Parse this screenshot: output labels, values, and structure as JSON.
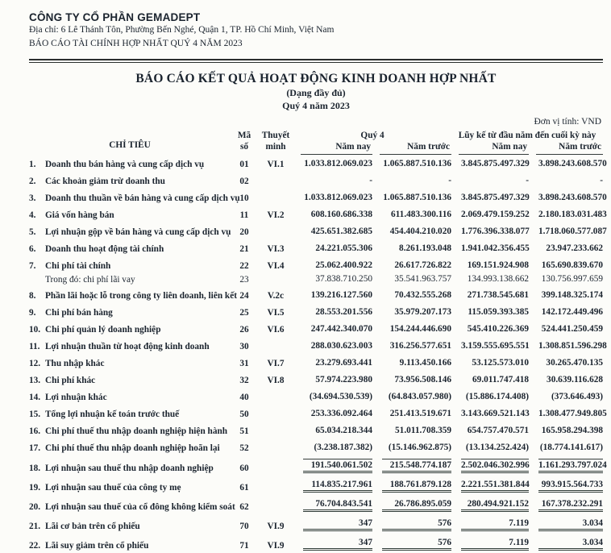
{
  "letterhead": {
    "company_name": "CÔNG TY CỔ PHẦN GEMADEPT",
    "address": "Địa chỉ: 6 Lê Thánh Tôn, Phường Bến Nghé, Quận 1, TP. Hồ Chí Minh, Việt Nam",
    "report_line": "BÁO CÁO TÀI CHÍNH HỢP NHẤT QUÝ 4 NĂM 2023"
  },
  "report": {
    "title": "BÁO CÁO KẾT QUẢ HOẠT ĐỘNG KINH DOANH HỢP NHẤT",
    "subtitle": "(Dạng đầy đủ)",
    "period": "Quý 4 năm 2023",
    "unit_label": "Đơn vị tính: VND"
  },
  "table": {
    "headers": {
      "criteria": "CHỈ TIÊU",
      "code_line1": "Mã",
      "code_line2": "số",
      "notes_line1": "Thuyết",
      "notes_line2": "minh",
      "group_quarter": "Quý 4",
      "group_ytd": "Lũy kế từ đầu năm đến cuối kỳ này",
      "col_current": "Năm nay",
      "col_prior": "Năm trước"
    },
    "rows": [
      {
        "no": "1.",
        "label": "Doanh thu bán hàng và cung cấp dịch vụ",
        "code": "01",
        "note": "VI.1",
        "q4_now": "1.033.812.069.023",
        "q4_prior": "1.065.887.510.136",
        "ytd_now": "3.845.875.497.329",
        "ytd_prior": "3.898.243.608.570"
      },
      {
        "no": "2.",
        "label": "Các khoản giảm trừ doanh thu",
        "code": "02",
        "note": "",
        "q4_now": "-",
        "q4_prior": "-",
        "ytd_now": "-",
        "ytd_prior": "-",
        "dash": true
      },
      {
        "no": "3.",
        "label": "Doanh thu thuần về bán hàng và cung cấp dịch vụ",
        "code": "10",
        "note": "",
        "q4_now": "1.033.812.069.023",
        "q4_prior": "1.065.887.510.136",
        "ytd_now": "3.845.875.497.329",
        "ytd_prior": "3.898.243.608.570"
      },
      {
        "no": "4.",
        "label": "Giá vốn hàng bán",
        "code": "11",
        "note": "VI.2",
        "q4_now": "608.160.686.338",
        "q4_prior": "611.483.300.116",
        "ytd_now": "2.069.479.159.252",
        "ytd_prior": "2.180.183.031.483"
      },
      {
        "no": "5.",
        "label": "Lợi nhuận gộp về bán hàng và cung cấp dịch vụ",
        "code": "20",
        "note": "",
        "q4_now": "425.651.382.685",
        "q4_prior": "454.404.210.020",
        "ytd_now": "1.776.396.338.077",
        "ytd_prior": "1.718.060.577.087"
      },
      {
        "no": "6.",
        "label": "Doanh thu hoạt động tài chính",
        "code": "21",
        "note": "VI.3",
        "q4_now": "24.221.055.306",
        "q4_prior": "8.261.193.048",
        "ytd_now": "1.941.042.356.455",
        "ytd_prior": "23.947.233.662"
      },
      {
        "no": "7.",
        "label": "Chi phí tài chính",
        "code": "22",
        "note": "VI.4",
        "q4_now": "25.062.400.922",
        "q4_prior": "26.617.726.822",
        "ytd_now": "169.151.924.908",
        "ytd_prior": "165.690.839.670"
      },
      {
        "no": "",
        "label": "Trong đó: chi phí lãi vay",
        "code": "23",
        "note": "",
        "q4_now": "37.838.710.250",
        "q4_prior": "35.541.963.757",
        "ytd_now": "134.993.138.662",
        "ytd_prior": "130.756.997.659",
        "sub": true
      },
      {
        "no": "8.",
        "label": "Phần lãi hoặc lỗ trong công ty liên doanh, liên kết",
        "code": "24",
        "note": "V.2c",
        "q4_now": "139.216.127.560",
        "q4_prior": "70.432.555.268",
        "ytd_now": "271.738.545.681",
        "ytd_prior": "399.148.325.174"
      },
      {
        "no": "9.",
        "label": "Chi phí bán hàng",
        "code": "25",
        "note": "VI.5",
        "q4_now": "28.553.201.556",
        "q4_prior": "35.979.207.173",
        "ytd_now": "115.059.393.385",
        "ytd_prior": "142.172.449.496"
      },
      {
        "no": "10.",
        "label": "Chi phí quản lý doanh nghiệp",
        "code": "26",
        "note": "VI.6",
        "q4_now": "247.442.340.070",
        "q4_prior": "154.244.446.690",
        "ytd_now": "545.410.226.369",
        "ytd_prior": "524.441.250.459"
      },
      {
        "no": "11.",
        "label": "Lợi nhuận thuần từ hoạt động kinh doanh",
        "code": "30",
        "note": "",
        "q4_now": "288.030.623.003",
        "q4_prior": "316.256.577.651",
        "ytd_now": "3.159.555.695.551",
        "ytd_prior": "1.308.851.596.298"
      },
      {
        "no": "12.",
        "label": "Thu nhập khác",
        "code": "31",
        "note": "VI.7",
        "q4_now": "23.279.693.441",
        "q4_prior": "9.113.450.166",
        "ytd_now": "53.125.573.010",
        "ytd_prior": "30.265.470.135"
      },
      {
        "no": "13.",
        "label": "Chi phí khác",
        "code": "32",
        "note": "VI.8",
        "q4_now": "57.974.223.980",
        "q4_prior": "73.956.508.146",
        "ytd_now": "69.011.747.418",
        "ytd_prior": "30.639.116.628"
      },
      {
        "no": "14.",
        "label": "Lợi nhuận khác",
        "code": "40",
        "note": "",
        "q4_now": "(34.694.530.539)",
        "q4_prior": "(64.843.057.980)",
        "ytd_now": "(15.886.174.408)",
        "ytd_prior": "(373.646.493)"
      },
      {
        "no": "15.",
        "label": "Tổng lợi nhuận kế toán trước thuế",
        "code": "50",
        "note": "",
        "q4_now": "253.336.092.464",
        "q4_prior": "251.413.519.671",
        "ytd_now": "3.143.669.521.143",
        "ytd_prior": "1.308.477.949.805"
      },
      {
        "no": "16.",
        "label": "Chi phí thuế thu nhập doanh nghiệp hiện hành",
        "code": "51",
        "note": "",
        "q4_now": "65.034.218.344",
        "q4_prior": "51.011.708.359",
        "ytd_now": "654.757.470.571",
        "ytd_prior": "165.958.294.398"
      },
      {
        "no": "17.",
        "label": "Chi phí thuế thu nhập doanh nghiệp hoãn lại",
        "code": "52",
        "note": "",
        "q4_now": "(3.238.187.382)",
        "q4_prior": "(15.146.962.875)",
        "ytd_now": "(13.134.252.424)",
        "ytd_prior": "(18.774.141.617)"
      },
      {
        "no": "18.",
        "label": "Lợi nhuận sau thuế thu nhập doanh nghiệp",
        "code": "60",
        "note": "",
        "q4_now": "191.540.061.502",
        "q4_prior": "215.548.774.187",
        "ytd_now": "2.502.046.302.996",
        "ytd_prior": "1.161.293.797.024",
        "rule": "total-top"
      },
      {
        "no": "19.",
        "label": "Lợi nhuận sau thuế của công ty mẹ",
        "code": "61",
        "note": "",
        "q4_now": "114.835.217.961",
        "q4_prior": "188.761.879.128",
        "ytd_now": "2.221.551.381.844",
        "ytd_prior": "993.915.564.733",
        "rule": "total"
      },
      {
        "no": "20.",
        "label": "Lợi nhuận sau thuế của cổ đông không kiểm soát",
        "code": "62",
        "note": "",
        "q4_now": "76.704.843.541",
        "q4_prior": "26.786.895.059",
        "ytd_now": "280.494.921.152",
        "ytd_prior": "167.378.232.291",
        "rule": "total"
      },
      {
        "no": "21.",
        "label": "Lãi cơ bản trên cổ phiếu",
        "code": "70",
        "note": "VI.9",
        "q4_now": "347",
        "q4_prior": "576",
        "ytd_now": "7.119",
        "ytd_prior": "3.034",
        "rule": "total"
      },
      {
        "no": "22.",
        "label": "Lãi suy giảm trên cổ phiếu",
        "code": "71",
        "note": "VI.9",
        "q4_now": "347",
        "q4_prior": "576",
        "ytd_now": "7.119",
        "ytd_prior": "3.034",
        "rule": "total"
      }
    ]
  }
}
